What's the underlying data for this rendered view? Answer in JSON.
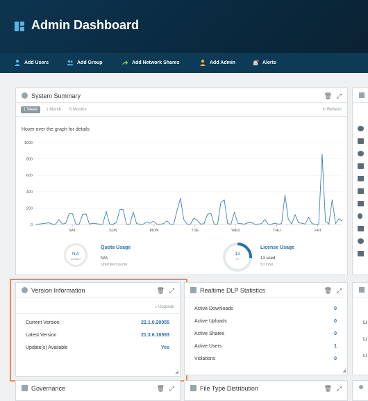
{
  "header": {
    "title": "Admin Dashboard"
  },
  "toolbar": {
    "items": [
      {
        "label": "Add Users",
        "icon": "user-icon"
      },
      {
        "label": "Add Group",
        "icon": "group-icon"
      },
      {
        "label": "Add Network Shares",
        "icon": "share-arrow-icon"
      },
      {
        "label": "Add Admin",
        "icon": "admin-icon"
      },
      {
        "label": "Alerts",
        "icon": "bell-icon"
      }
    ]
  },
  "system_summary": {
    "title": "System Summary",
    "tabs": [
      "1 Week",
      "1 Month",
      "6 Months"
    ],
    "active_tab": "1 Week",
    "refresh": "Refresh",
    "hint": "Hover over the graph for details",
    "quota": {
      "ring_text": "N/A",
      "ring_sub": "Unlimited",
      "label": "Quota Usage",
      "value": "N/A",
      "sub": "Unlimited quota"
    },
    "license": {
      "ring_text": "13",
      "ring_sub": "50",
      "label": "License Usage",
      "value": "13 used",
      "sub": "50 total",
      "fraction": 0.26
    }
  },
  "chart_data": {
    "type": "line",
    "x_ticks": [
      "SAT",
      "SUN",
      "MON",
      "TUE",
      "WED",
      "THU",
      "FRI"
    ],
    "y_ticks": [
      0,
      200,
      400,
      600,
      800,
      1000
    ],
    "ylim": [
      0,
      1000
    ],
    "series": [
      {
        "values": [
          5,
          5,
          10,
          15,
          20,
          5,
          5,
          60,
          5,
          15,
          130,
          130,
          5,
          5,
          120,
          130,
          5,
          15,
          10,
          5,
          5,
          160,
          5,
          5,
          20,
          180,
          185,
          5,
          5,
          150,
          10,
          5,
          5,
          30,
          15,
          40,
          5,
          5,
          10,
          45,
          5,
          5,
          170,
          320,
          60,
          5,
          5,
          80,
          50,
          5,
          10,
          120,
          140,
          5,
          5,
          270,
          300,
          10,
          5,
          150,
          15,
          10,
          5,
          20,
          25,
          5,
          5,
          10,
          60,
          5,
          5,
          15,
          5,
          10,
          360,
          60,
          5,
          120,
          20,
          15,
          5,
          90,
          10,
          5,
          5,
          860,
          40,
          5,
          300,
          10,
          70,
          40
        ]
      }
    ]
  },
  "version_info": {
    "title": "Version Information",
    "upgrade": "Upgrade",
    "rows": [
      {
        "label": "Current Version",
        "value": "22.1.0.20055"
      },
      {
        "label": "Latest Version",
        "value": "21.3.6.18593"
      },
      {
        "label": "Update(s) Available",
        "value": "Yes"
      }
    ]
  },
  "dlp": {
    "title": "Realtime DLP Statistics",
    "rows": [
      {
        "label": "Active Downloads",
        "value": "0"
      },
      {
        "label": "Active Uploads",
        "value": "0"
      },
      {
        "label": "Active Shares",
        "value": "0"
      },
      {
        "label": "Active Users",
        "value": "1"
      },
      {
        "label": "Violations",
        "value": "0"
      }
    ]
  },
  "governance": {
    "title": "Governance"
  },
  "file_type": {
    "title": "File Type Distribution"
  },
  "right_panel": {
    "labels": [
      "Li",
      "Li",
      "Li"
    ]
  },
  "colors": {
    "accent": "#2a6fa8",
    "header": "#0c3550",
    "highlight": "#f08a4b"
  }
}
